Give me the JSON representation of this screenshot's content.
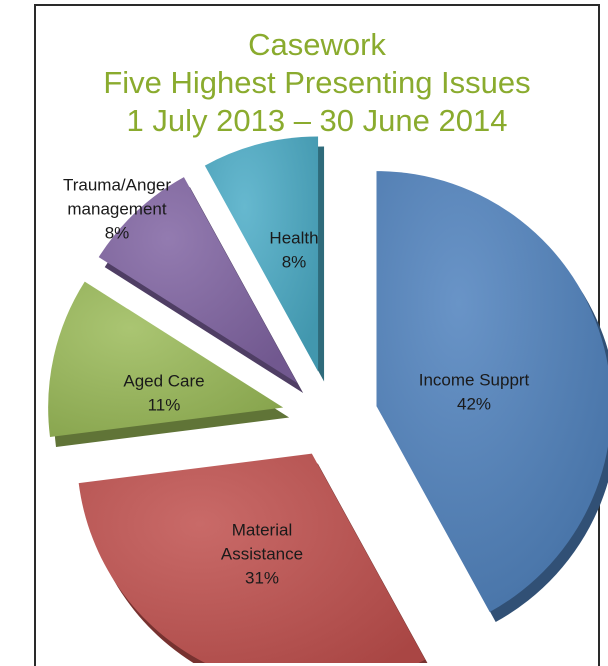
{
  "chart_data": {
    "type": "pie",
    "title_lines": [
      "Casework",
      "Five Highest Presenting Issues",
      "1 July 2013 – 30 June 2014"
    ],
    "slices": [
      {
        "label_lines": [
          "Income Supprt"
        ],
        "pct_label": "42%",
        "value": 42,
        "color": "#4f81bd"
      },
      {
        "label_lines": [
          "Material",
          "Assistance"
        ],
        "pct_label": "31%",
        "value": 31,
        "color": "#c0504d"
      },
      {
        "label_lines": [
          "Aged Care"
        ],
        "pct_label": "11%",
        "value": 11,
        "color": "#9bbb59"
      },
      {
        "label_lines": [
          "Trauma/Anger",
          "management"
        ],
        "pct_label": "8%",
        "value": 8,
        "color": "#8064a2"
      },
      {
        "label_lines": [
          "Health"
        ],
        "pct_label": "8%",
        "value": 8,
        "color": "#4bacc6"
      }
    ],
    "exploded": true,
    "style": "3d"
  }
}
